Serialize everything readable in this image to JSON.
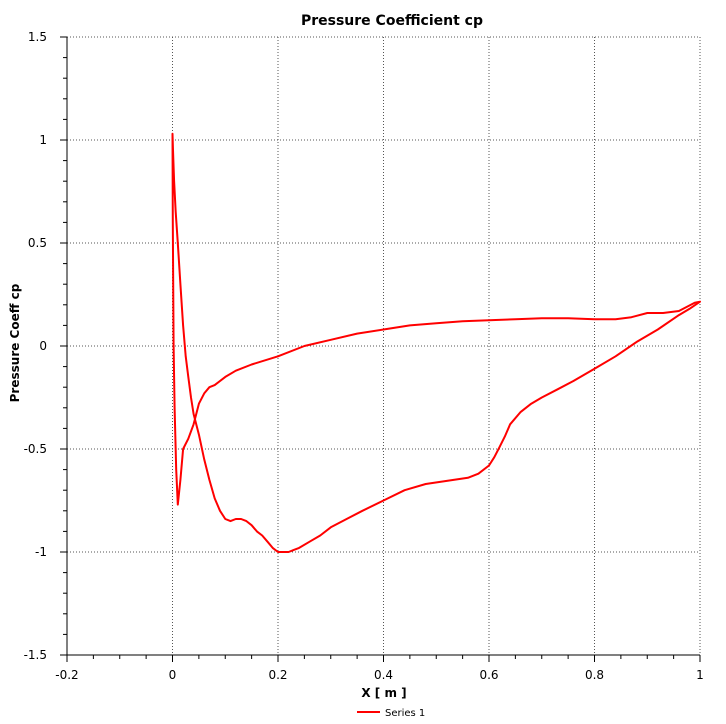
{
  "chart_data": {
    "type": "line",
    "title": "Pressure Coefficient cp",
    "xlabel": "X [ m ]",
    "ylabel": "Pressure Coeff cp",
    "xlim": [
      -0.2,
      1.0
    ],
    "ylim": [
      -1.5,
      1.5
    ],
    "x_ticks": [
      "-0.2",
      "0",
      "0.2",
      "0.4",
      "0.6",
      "0.8",
      "1"
    ],
    "x_tick_values": [
      -0.2,
      0,
      0.2,
      0.4,
      0.6,
      0.8,
      1.0
    ],
    "y_ticks": [
      "1.5",
      "1",
      "0.5",
      "0",
      "-0.5",
      "-1",
      "-1.5"
    ],
    "y_tick_values": [
      1.5,
      1.0,
      0.5,
      0,
      -0.5,
      -1.0,
      -1.5
    ],
    "grid": true,
    "legend_position": "bottom-center",
    "series": [
      {
        "name": "Series 1",
        "color": "#ff0000",
        "x": [
          1.0,
          0.99,
          0.96,
          0.93,
          0.9,
          0.87,
          0.84,
          0.8,
          0.75,
          0.7,
          0.65,
          0.6,
          0.55,
          0.5,
          0.45,
          0.4,
          0.35,
          0.3,
          0.25,
          0.2,
          0.15,
          0.12,
          0.1,
          0.08,
          0.07,
          0.06,
          0.05,
          0.04,
          0.03,
          0.02,
          0.015,
          0.01,
          0.007,
          0.004,
          0.002,
          0.0005,
          0.0,
          0.001,
          0.003,
          0.006,
          0.01,
          0.015,
          0.02,
          0.025,
          0.03,
          0.035,
          0.04,
          0.05,
          0.06,
          0.07,
          0.08,
          0.09,
          0.1,
          0.11,
          0.12,
          0.13,
          0.14,
          0.15,
          0.16,
          0.17,
          0.18,
          0.19,
          0.2,
          0.21,
          0.22,
          0.23,
          0.24,
          0.26,
          0.28,
          0.3,
          0.33,
          0.36,
          0.4,
          0.44,
          0.48,
          0.52,
          0.56,
          0.58,
          0.6,
          0.61,
          0.62,
          0.63,
          0.64,
          0.66,
          0.68,
          0.7,
          0.73,
          0.76,
          0.8,
          0.84,
          0.88,
          0.92,
          0.96,
          0.98,
          1.0
        ],
        "y": [
          0.215,
          0.21,
          0.17,
          0.16,
          0.16,
          0.14,
          0.13,
          0.13,
          0.135,
          0.135,
          0.13,
          0.125,
          0.12,
          0.11,
          0.1,
          0.08,
          0.06,
          0.03,
          0.0,
          -0.05,
          -0.09,
          -0.12,
          -0.15,
          -0.19,
          -0.2,
          -0.23,
          -0.28,
          -0.38,
          -0.45,
          -0.5,
          -0.65,
          -0.77,
          -0.6,
          -0.3,
          0.0,
          0.6,
          1.03,
          0.95,
          0.8,
          0.65,
          0.5,
          0.3,
          0.1,
          -0.05,
          -0.15,
          -0.25,
          -0.33,
          -0.43,
          -0.55,
          -0.65,
          -0.74,
          -0.8,
          -0.84,
          -0.85,
          -0.84,
          -0.84,
          -0.85,
          -0.87,
          -0.9,
          -0.92,
          -0.95,
          -0.98,
          -1.0,
          -1.0,
          -1.0,
          -0.99,
          -0.98,
          -0.95,
          -0.92,
          -0.88,
          -0.84,
          -0.8,
          -0.75,
          -0.7,
          -0.67,
          -0.655,
          -0.64,
          -0.62,
          -0.58,
          -0.54,
          -0.49,
          -0.44,
          -0.38,
          -0.32,
          -0.28,
          -0.25,
          -0.21,
          -0.17,
          -0.11,
          -0.05,
          0.02,
          0.08,
          0.15,
          0.18,
          0.215
        ]
      }
    ]
  }
}
